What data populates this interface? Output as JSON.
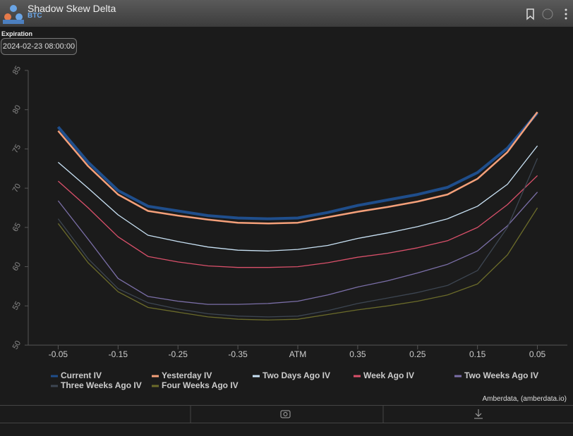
{
  "header": {
    "title": "Shadow Skew Delta",
    "subtitle": "BTC"
  },
  "expiration": {
    "label": "Expiration",
    "value": "2024-02-23 08:00:00"
  },
  "footer": {
    "credit": "Amberdata, (amberdata.io)"
  },
  "chart_data": {
    "type": "line",
    "x": [
      0,
      0.5,
      1,
      1.5,
      2,
      2.5,
      3,
      3.5,
      4,
      4.5,
      5,
      5.5,
      6,
      6.5,
      7,
      7.5,
      8
    ],
    "xlim": [
      -0.5,
      8.5
    ],
    "xticks": [
      {
        "value": 0,
        "label": "-0.05"
      },
      {
        "value": 1,
        "label": "-0.15"
      },
      {
        "value": 2,
        "label": "-0.25"
      },
      {
        "value": 3,
        "label": "-0.35"
      },
      {
        "value": 4,
        "label": "ATM"
      },
      {
        "value": 5,
        "label": "0.35"
      },
      {
        "value": 6,
        "label": "0.25"
      },
      {
        "value": 7,
        "label": "0.15"
      },
      {
        "value": 8,
        "label": "0.05"
      }
    ],
    "ylim": [
      50,
      85
    ],
    "yticks": [
      50,
      55,
      60,
      65,
      70,
      75,
      80,
      85
    ],
    "series": [
      {
        "name": "Current IV",
        "color": "#1f4e8c",
        "values": [
          77.8,
          73.3,
          69.7,
          67.7,
          67.1,
          66.5,
          66.2,
          66.1,
          66.2,
          66.9,
          67.8,
          68.5,
          69.2,
          70.1,
          72.0,
          75.1,
          79.6
        ]
      },
      {
        "name": "Yesterday IV",
        "color": "#f4a07a",
        "values": [
          77.3,
          72.8,
          69.2,
          67.1,
          66.5,
          66.0,
          65.6,
          65.5,
          65.6,
          66.3,
          67.0,
          67.6,
          68.3,
          69.2,
          71.2,
          74.6,
          79.7
        ]
      },
      {
        "name": "Two Days Ago IV",
        "color": "#c9e2f5",
        "values": [
          73.3,
          70.0,
          66.6,
          64.0,
          63.2,
          62.5,
          62.1,
          62.0,
          62.2,
          62.7,
          63.6,
          64.3,
          65.1,
          66.1,
          67.7,
          70.5,
          75.4
        ]
      },
      {
        "name": "Week Ago IV",
        "color": "#d9506a",
        "values": [
          70.9,
          67.5,
          63.8,
          61.3,
          60.6,
          60.1,
          59.9,
          59.9,
          60.0,
          60.5,
          61.2,
          61.7,
          62.4,
          63.3,
          65.0,
          67.9,
          71.6
        ]
      },
      {
        "name": "Two Weeks Ago IV",
        "color": "#7b6fa8",
        "values": [
          68.4,
          63.5,
          58.5,
          56.2,
          55.6,
          55.2,
          55.2,
          55.3,
          55.6,
          56.4,
          57.4,
          58.2,
          59.2,
          60.3,
          62.0,
          65.2,
          69.5
        ]
      },
      {
        "name": "Three Weeks Ago IV",
        "color": "#3d4652",
        "values": [
          66.1,
          61.0,
          57.2,
          55.4,
          54.6,
          54.0,
          53.7,
          53.6,
          53.7,
          54.4,
          55.3,
          56.0,
          56.7,
          57.6,
          59.5,
          65.0,
          73.8
        ]
      },
      {
        "name": "Four Weeks Ago IV",
        "color": "#6b6b2a",
        "values": [
          65.5,
          60.5,
          56.8,
          54.8,
          54.2,
          53.6,
          53.3,
          53.2,
          53.3,
          53.9,
          54.5,
          55.0,
          55.6,
          56.4,
          57.8,
          61.5,
          67.5
        ]
      }
    ]
  }
}
